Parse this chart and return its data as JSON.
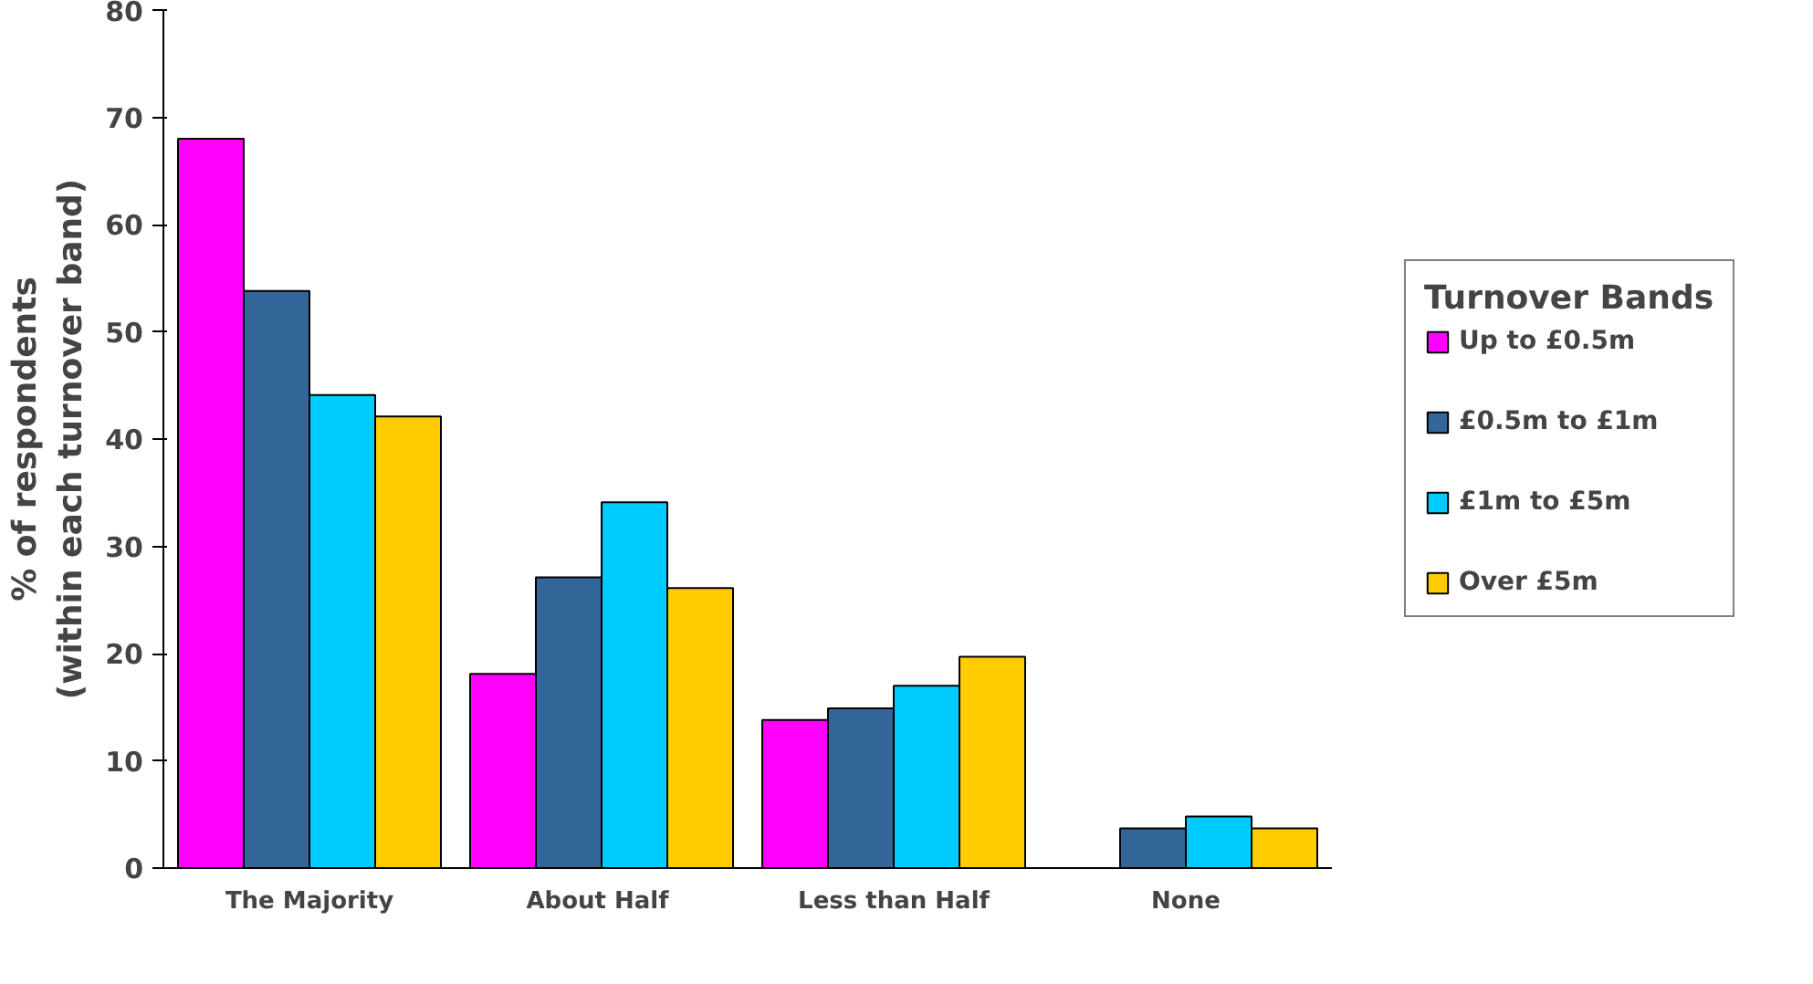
{
  "chart_data": {
    "type": "bar",
    "ylabel": "% of respondents\n(within each turnover band)",
    "legend_title": "Turnover Bands",
    "categories": [
      "The Majority",
      "About  Half",
      "Less than Half",
      "None"
    ],
    "series": [
      {
        "name": "Up to £0.5m",
        "color": "#ff00ff",
        "values": [
          68,
          18.1,
          13.8,
          null
        ]
      },
      {
        "name": "£0.5m to £1m",
        "color": "#336699",
        "values": [
          53.8,
          27.1,
          14.9,
          3.7
        ]
      },
      {
        "name": "£1m to £5m",
        "color": "#00ccff",
        "values": [
          44.1,
          34.1,
          17.0,
          4.8
        ]
      },
      {
        "name": "Over £5m",
        "color": "#ffcc00",
        "values": [
          42.1,
          26.1,
          19.7,
          3.7
        ]
      }
    ],
    "ylim": [
      0,
      80
    ],
    "yticks": [
      0,
      10,
      20,
      30,
      40,
      50,
      60,
      70,
      80
    ],
    "grid": false,
    "legend": "right"
  }
}
